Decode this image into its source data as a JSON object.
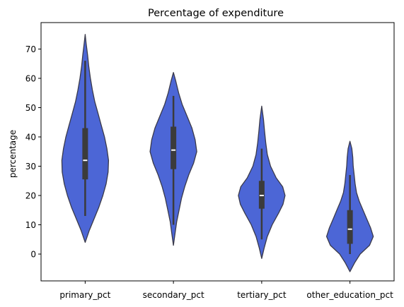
{
  "chart_data": {
    "type": "violin",
    "title": "Percentage of expenditure",
    "xlabel": "",
    "ylabel": "percentage",
    "ylim": [
      -9,
      78
    ],
    "yticks": [
      0,
      10,
      20,
      30,
      40,
      50,
      60,
      70
    ],
    "categories": [
      "primary_pct",
      "secondary_pct",
      "tertiary_pct",
      "other_education_pct"
    ],
    "grid": false,
    "colors": {
      "violin_fill": "#4c66d6",
      "outline": "#3a3a4a",
      "box": "#3b3b3b",
      "median": "#ffffff"
    },
    "violins": [
      {
        "name": "primary_pct",
        "whisker_low": 13,
        "q1": 25.5,
        "median": 32,
        "q3": 43,
        "whisker_high": 66,
        "density": [
          [
            4,
            0
          ],
          [
            8,
            5
          ],
          [
            12,
            11
          ],
          [
            16,
            17
          ],
          [
            20,
            22
          ],
          [
            24,
            26
          ],
          [
            28,
            28.5
          ],
          [
            32,
            29
          ],
          [
            36,
            27
          ],
          [
            40,
            24
          ],
          [
            44,
            20
          ],
          [
            48,
            16
          ],
          [
            52,
            12
          ],
          [
            56,
            9
          ],
          [
            60,
            6.5
          ],
          [
            64,
            4.5
          ],
          [
            68,
            3
          ],
          [
            72,
            1.2
          ],
          [
            75,
            0
          ]
        ]
      },
      {
        "name": "secondary_pct",
        "whisker_low": 10,
        "q1": 29,
        "median": 35.5,
        "q3": 43.5,
        "whisker_high": 54,
        "density": [
          [
            3,
            0
          ],
          [
            7,
            2
          ],
          [
            11,
            4
          ],
          [
            15,
            7
          ],
          [
            19,
            10
          ],
          [
            23,
            14
          ],
          [
            27,
            19
          ],
          [
            31,
            25
          ],
          [
            35,
            29
          ],
          [
            39,
            27
          ],
          [
            43,
            23
          ],
          [
            47,
            17
          ],
          [
            51,
            11
          ],
          [
            55,
            6.5
          ],
          [
            59,
            3
          ],
          [
            62,
            0
          ]
        ]
      },
      {
        "name": "tertiary_pct",
        "whisker_low": 5,
        "q1": 15.5,
        "median": 20,
        "q3": 25,
        "whisker_high": 36,
        "density": [
          [
            -1.5,
            0
          ],
          [
            2,
            3
          ],
          [
            6,
            7
          ],
          [
            10,
            13
          ],
          [
            14,
            21
          ],
          [
            17,
            26.5
          ],
          [
            20,
            29
          ],
          [
            23,
            26
          ],
          [
            26,
            18
          ],
          [
            30,
            11
          ],
          [
            34,
            7
          ],
          [
            38,
            5
          ],
          [
            42,
            3.5
          ],
          [
            46,
            2.2
          ],
          [
            50.5,
            0
          ]
        ]
      },
      {
        "name": "other_education_pct",
        "whisker_low": 0,
        "q1": 3.5,
        "median": 8.5,
        "q3": 15,
        "whisker_high": 27,
        "density": [
          [
            -6,
            0
          ],
          [
            -3,
            5
          ],
          [
            0,
            11
          ],
          [
            3,
            21
          ],
          [
            6,
            25
          ],
          [
            9,
            22
          ],
          [
            12,
            18
          ],
          [
            15,
            14
          ],
          [
            18,
            10
          ],
          [
            21,
            7
          ],
          [
            24,
            5.5
          ],
          [
            27,
            4.5
          ],
          [
            30,
            3.5
          ],
          [
            33,
            3
          ],
          [
            36,
            2
          ],
          [
            38.5,
            0
          ]
        ]
      }
    ]
  }
}
